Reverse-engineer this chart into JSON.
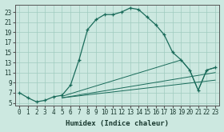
{
  "xlabel": "Humidex (Indice chaleur)",
  "ylabel": "",
  "bg_color": "#cce8e0",
  "line_color": "#1a6b5a",
  "xlim": [
    -0.5,
    23.5
  ],
  "ylim": [
    4.5,
    24.5
  ],
  "yticks": [
    5,
    7,
    9,
    11,
    13,
    15,
    17,
    19,
    21,
    23
  ],
  "xticks": [
    0,
    1,
    2,
    3,
    4,
    5,
    6,
    7,
    8,
    9,
    10,
    11,
    12,
    13,
    14,
    15,
    16,
    17,
    18,
    19,
    20,
    21,
    22,
    23
  ],
  "main_line_x": [
    0,
    1,
    2,
    3,
    4,
    5,
    6,
    7,
    8,
    9,
    10,
    11,
    12,
    13,
    14,
    15,
    16,
    17,
    18,
    19,
    20,
    21,
    22,
    23
  ],
  "main_line_y": [
    7,
    6,
    5.2,
    5.5,
    6.2,
    6.5,
    8.5,
    13.5,
    19.5,
    21.5,
    22.5,
    22.5,
    23.0,
    23.8,
    23.5,
    22.0,
    20.5,
    18.5,
    15.0,
    13.5,
    11.5,
    7.5,
    11.5,
    12.0
  ],
  "line2_x": [
    5,
    19,
    20,
    21,
    22,
    23
  ],
  "line2_y": [
    6.3,
    13.5,
    11.5,
    7.5,
    11.5,
    12.0
  ],
  "line3_x": [
    5,
    23
  ],
  "line3_y": [
    6.0,
    11.0
  ],
  "line4_x": [
    5,
    23
  ],
  "line4_y": [
    6.0,
    9.5
  ],
  "grid_color": "#a0ccbf",
  "tick_fontsize": 5.5
}
